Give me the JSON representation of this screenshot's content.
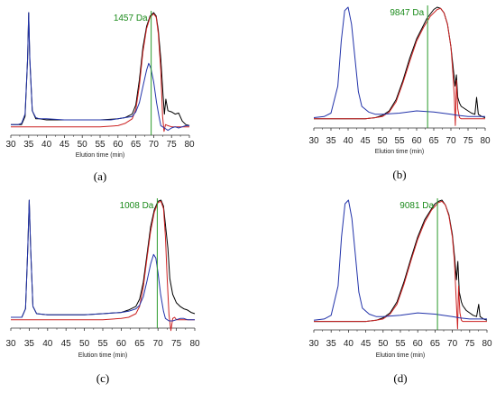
{
  "chart_data": [
    {
      "type": "line",
      "panel_label": "(a)",
      "xlabel": "Elution time (min)",
      "xlim": [
        30,
        80
      ],
      "x_ticks": [
        30,
        35,
        40,
        45,
        50,
        55,
        60,
        65,
        70,
        75,
        80
      ],
      "marker": {
        "label": "1457 Da",
        "x": 69.3,
        "color": "#2a9a2a"
      },
      "series": [
        {
          "color": "#000000",
          "x": [
            30,
            31,
            32,
            33,
            34,
            34.7,
            35,
            35.3,
            36,
            37,
            38,
            40,
            45,
            50,
            55,
            60,
            62,
            64,
            65,
            66,
            67,
            68,
            69,
            70,
            70.7,
            71.3,
            72,
            72.6,
            73,
            73.4,
            74,
            75,
            76,
            77,
            78,
            79,
            80
          ],
          "y": [
            0.03,
            0.03,
            0.03,
            0.03,
            0.1,
            0.6,
            1.0,
            0.6,
            0.15,
            0.08,
            0.08,
            0.07,
            0.07,
            0.07,
            0.07,
            0.08,
            0.09,
            0.12,
            0.2,
            0.42,
            0.7,
            0.88,
            0.97,
            1.0,
            0.97,
            0.85,
            0.6,
            0.3,
            0.12,
            0.25,
            0.15,
            0.14,
            0.12,
            0.13,
            0.06,
            0.03,
            0.02
          ]
        },
        {
          "color": "#cc2222",
          "x": [
            30,
            40,
            50,
            55,
            60,
            62,
            64,
            65,
            66,
            67,
            68,
            69,
            70,
            70.7,
            71.3,
            72,
            72.5,
            72.9,
            73.3,
            74,
            75,
            80
          ],
          "y": [
            0.01,
            0.01,
            0.01,
            0.01,
            0.02,
            0.04,
            0.08,
            0.16,
            0.37,
            0.66,
            0.86,
            0.96,
            0.99,
            0.96,
            0.82,
            0.5,
            0.1,
            -0.03,
            0.03,
            0.02,
            0.01,
            0.01
          ]
        },
        {
          "color": "#2233aa",
          "x": [
            30,
            31,
            32,
            33,
            34,
            34.7,
            35,
            35.3,
            36,
            37,
            38,
            40,
            45,
            50,
            55,
            58,
            60,
            62,
            64,
            65,
            66,
            67,
            68,
            68.6,
            69.2,
            70,
            70.8,
            71.5,
            72,
            73,
            74,
            75,
            76,
            77,
            78,
            79,
            80
          ],
          "y": [
            0.03,
            0.03,
            0.03,
            0.04,
            0.12,
            0.6,
            1.0,
            0.62,
            0.15,
            0.09,
            0.08,
            0.08,
            0.07,
            0.07,
            0.07,
            0.07,
            0.08,
            0.09,
            0.1,
            0.14,
            0.22,
            0.36,
            0.5,
            0.56,
            0.52,
            0.4,
            0.22,
            0.1,
            0.02,
            0.0,
            -0.02,
            0.0,
            0.01,
            0.0,
            0.01,
            0.02,
            0.02
          ]
        }
      ]
    },
    {
      "type": "line",
      "panel_label": "(b)",
      "xlabel": "Elution time (min)",
      "xlim": [
        30,
        80
      ],
      "x_ticks": [
        30,
        35,
        40,
        45,
        50,
        55,
        60,
        65,
        70,
        75,
        80
      ],
      "marker": {
        "label": "9847 Da",
        "x": 63.2,
        "color": "#2a9a2a"
      },
      "series": [
        {
          "color": "#000000",
          "x": [
            30,
            45,
            48,
            50,
            52,
            54,
            56,
            58,
            60,
            62,
            63,
            64,
            65,
            66,
            67,
            68,
            69,
            70,
            70.7,
            71.2,
            71.6,
            72,
            72.5,
            73,
            74,
            75,
            76,
            77,
            77.5,
            78,
            79,
            80
          ],
          "y": [
            0.01,
            0.01,
            0.02,
            0.04,
            0.08,
            0.18,
            0.35,
            0.55,
            0.72,
            0.84,
            0.9,
            0.94,
            0.98,
            1.0,
            0.99,
            0.95,
            0.85,
            0.65,
            0.45,
            0.3,
            0.4,
            0.2,
            0.15,
            0.12,
            0.1,
            0.08,
            0.06,
            0.05,
            0.2,
            0.05,
            0.03,
            0.02
          ]
        },
        {
          "color": "#cc2222",
          "x": [
            30,
            45,
            48,
            50,
            52,
            54,
            56,
            58,
            60,
            62,
            64,
            66,
            67,
            68,
            69,
            70,
            70.5,
            71,
            71.3,
            71.6,
            72,
            72.5,
            73,
            74,
            80
          ],
          "y": [
            0.01,
            0.01,
            0.02,
            0.03,
            0.07,
            0.16,
            0.33,
            0.52,
            0.7,
            0.82,
            0.92,
            0.98,
            0.99,
            0.95,
            0.85,
            0.65,
            0.45,
            0.2,
            -0.05,
            0.35,
            0.1,
            0.02,
            0.01,
            0.01,
            0.01
          ]
        },
        {
          "color": "#2233aa",
          "x": [
            30,
            33,
            35,
            37,
            38,
            39,
            40,
            41,
            42,
            43,
            44,
            46,
            48,
            50,
            55,
            60,
            65,
            70,
            72,
            75,
            80
          ],
          "y": [
            0.02,
            0.03,
            0.06,
            0.3,
            0.7,
            0.97,
            1.0,
            0.85,
            0.55,
            0.25,
            0.12,
            0.07,
            0.05,
            0.05,
            0.06,
            0.08,
            0.07,
            0.05,
            0.04,
            0.03,
            0.03
          ]
        }
      ]
    },
    {
      "type": "line",
      "panel_label": "(c)",
      "xlabel": "Elution time (min)",
      "xlim": [
        30,
        80
      ],
      "x_ticks": [
        30,
        35,
        40,
        45,
        50,
        55,
        60,
        65,
        70,
        75,
        80
      ],
      "marker": {
        "label": "1008 Da",
        "x": 69.8,
        "color": "#2a9a2a"
      },
      "series": [
        {
          "color": "#000000",
          "x": [
            30,
            33,
            34,
            34.6,
            35,
            35.4,
            36,
            37,
            40,
            45,
            50,
            55,
            60,
            62,
            64,
            65,
            66,
            67,
            68,
            69,
            70,
            70.8,
            71.5,
            72,
            72.7,
            73.2,
            74,
            75,
            76,
            77,
            78,
            79,
            80
          ],
          "y": [
            0.03,
            0.03,
            0.1,
            0.6,
            1.0,
            0.6,
            0.12,
            0.06,
            0.05,
            0.05,
            0.05,
            0.06,
            0.07,
            0.09,
            0.12,
            0.18,
            0.32,
            0.55,
            0.78,
            0.92,
            0.99,
            1.0,
            0.95,
            0.8,
            0.6,
            0.35,
            0.22,
            0.15,
            0.12,
            0.1,
            0.09,
            0.07,
            0.06
          ]
        },
        {
          "color": "#cc2222",
          "x": [
            30,
            40,
            50,
            55,
            60,
            62,
            64,
            65,
            66,
            67,
            68,
            69,
            70,
            70.8,
            71.5,
            72,
            72.5,
            73,
            73.5,
            74,
            74.5,
            75,
            80
          ],
          "y": [
            0.01,
            0.01,
            0.01,
            0.01,
            0.02,
            0.03,
            0.06,
            0.12,
            0.28,
            0.52,
            0.74,
            0.9,
            0.98,
            0.99,
            0.93,
            0.7,
            0.35,
            0.05,
            -0.08,
            0.02,
            0.03,
            0.01,
            0.01
          ]
        },
        {
          "color": "#2233aa",
          "x": [
            30,
            33,
            34,
            34.6,
            35,
            35.4,
            36,
            37,
            40,
            45,
            50,
            55,
            60,
            62,
            64,
            65,
            66,
            67,
            68,
            68.8,
            69.4,
            70,
            70.7,
            71.5,
            72,
            73,
            74,
            75,
            76,
            77,
            78,
            79,
            80
          ],
          "y": [
            0.03,
            0.03,
            0.1,
            0.6,
            1.0,
            0.6,
            0.12,
            0.06,
            0.05,
            0.05,
            0.05,
            0.06,
            0.07,
            0.08,
            0.1,
            0.13,
            0.2,
            0.33,
            0.47,
            0.55,
            0.52,
            0.4,
            0.22,
            0.08,
            0.02,
            0.0,
            0.0,
            0.01,
            0.02,
            0.02,
            0.01,
            0.01,
            0.01
          ]
        }
      ]
    },
    {
      "type": "line",
      "panel_label": "(d)",
      "xlabel": "Elution time (min)",
      "xlim": [
        30,
        80
      ],
      "x_ticks": [
        30,
        35,
        40,
        45,
        50,
        55,
        60,
        65,
        70,
        75,
        80
      ],
      "marker": {
        "label": "9081 Da",
        "x": 65.7,
        "color": "#2a9a2a"
      },
      "series": [
        {
          "color": "#000000",
          "x": [
            30,
            45,
            48,
            50,
            52,
            54,
            56,
            58,
            60,
            62,
            64,
            65,
            66,
            67,
            68,
            69,
            70,
            70.7,
            71.2,
            71.6,
            72,
            72.6,
            73,
            74,
            75,
            76,
            77,
            77.6,
            78,
            79,
            80
          ],
          "y": [
            0.01,
            0.01,
            0.02,
            0.04,
            0.08,
            0.17,
            0.33,
            0.52,
            0.7,
            0.84,
            0.93,
            0.97,
            0.99,
            1.0,
            0.96,
            0.88,
            0.72,
            0.52,
            0.35,
            0.5,
            0.25,
            0.17,
            0.14,
            0.1,
            0.08,
            0.06,
            0.05,
            0.15,
            0.05,
            0.03,
            0.02
          ]
        },
        {
          "color": "#cc2222",
          "x": [
            30,
            45,
            48,
            50,
            52,
            54,
            56,
            58,
            60,
            62,
            64,
            66,
            67,
            68,
            69,
            70,
            70.6,
            71.1,
            71.5,
            71.8,
            72.2,
            72.6,
            73,
            74,
            80
          ],
          "y": [
            0.01,
            0.01,
            0.02,
            0.03,
            0.07,
            0.15,
            0.31,
            0.5,
            0.68,
            0.82,
            0.92,
            0.98,
            0.99,
            0.96,
            0.87,
            0.7,
            0.5,
            0.2,
            -0.05,
            0.3,
            0.08,
            0.02,
            0.01,
            0.01,
            0.01
          ]
        },
        {
          "color": "#2233aa",
          "x": [
            30,
            33,
            35,
            37,
            38,
            39,
            40,
            41,
            42,
            43,
            44,
            46,
            48,
            50,
            55,
            60,
            65,
            70,
            72,
            75,
            80
          ],
          "y": [
            0.02,
            0.03,
            0.06,
            0.3,
            0.7,
            0.97,
            1.0,
            0.85,
            0.55,
            0.25,
            0.12,
            0.07,
            0.05,
            0.05,
            0.06,
            0.08,
            0.07,
            0.05,
            0.04,
            0.03,
            0.03
          ]
        }
      ]
    }
  ]
}
